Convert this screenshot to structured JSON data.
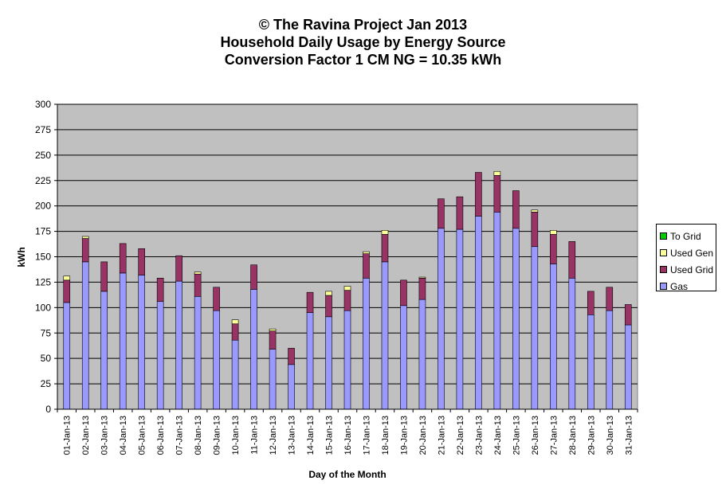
{
  "chart_data": {
    "type": "bar",
    "stacked": true,
    "title": "© The Ravina Project Jan 2013",
    "subtitle_lines": [
      "Household Daily Usage by Energy Source",
      "Conversion Factor 1 CM NG = 10.35 kWh"
    ],
    "xlabel": "Day of the Month",
    "ylabel": "kWh",
    "ylim": [
      0,
      300
    ],
    "yticks": [
      0,
      25,
      50,
      75,
      100,
      125,
      150,
      175,
      200,
      225,
      250,
      275,
      300
    ],
    "grid": true,
    "legend_position": "right",
    "categories": [
      "01-Jan-13",
      "02-Jan-13",
      "03-Jan-13",
      "04-Jan-13",
      "05-Jan-13",
      "06-Jan-13",
      "07-Jan-13",
      "08-Jan-13",
      "09-Jan-13",
      "10-Jan-13",
      "11-Jan-13",
      "12-Jan-13",
      "13-Jan-13",
      "14-Jan-13",
      "15-Jan-13",
      "16-Jan-13",
      "17-Jan-13",
      "18-Jan-13",
      "19-Jan-13",
      "20-Jan-13",
      "21-Jan-13",
      "22-Jan-13",
      "23-Jan-13",
      "24-Jan-13",
      "25-Jan-13",
      "26-Jan-13",
      "27-Jan-13",
      "28-Jan-13",
      "29-Jan-13",
      "30-Jan-13",
      "31-Jan-13"
    ],
    "series": [
      {
        "name": "Gas",
        "color": "#9999FF",
        "values": [
          105,
          145,
          116,
          134,
          132,
          106,
          126,
          111,
          97,
          68,
          118,
          59,
          44,
          95,
          91,
          97,
          129,
          145,
          102,
          108,
          178,
          177,
          190,
          194,
          178,
          160,
          143,
          129,
          93,
          97,
          83
        ]
      },
      {
        "name": "Used Grid",
        "color": "#993366",
        "values": [
          22,
          23,
          29,
          29,
          26,
          23,
          25,
          22,
          23,
          16,
          24,
          18,
          16,
          20,
          21,
          20,
          24,
          27,
          25,
          21,
          29,
          32,
          43,
          36,
          37,
          34,
          29,
          36,
          23,
          23,
          20
        ]
      },
      {
        "name": "Used Gen",
        "color": "#FFFF99",
        "values": [
          4,
          2,
          0,
          0,
          0,
          0,
          0,
          2,
          0,
          4,
          0,
          2,
          0,
          0,
          4,
          4,
          2,
          4,
          0,
          1,
          0,
          0,
          0,
          4,
          0,
          2,
          4,
          0,
          0,
          0,
          0
        ]
      },
      {
        "name": "To Grid",
        "color": "#00CC00",
        "values": [
          0,
          0,
          0,
          0,
          0,
          0,
          0,
          0,
          0,
          0,
          0,
          0,
          0,
          0,
          0,
          0,
          0,
          0,
          0,
          0,
          0,
          0,
          0,
          0,
          0,
          0,
          0,
          0,
          0,
          0,
          0
        ]
      }
    ],
    "legend_order": [
      "To Grid",
      "Used Gen",
      "Used Grid",
      "Gas"
    ],
    "plot_background": "#C0C0C0"
  }
}
